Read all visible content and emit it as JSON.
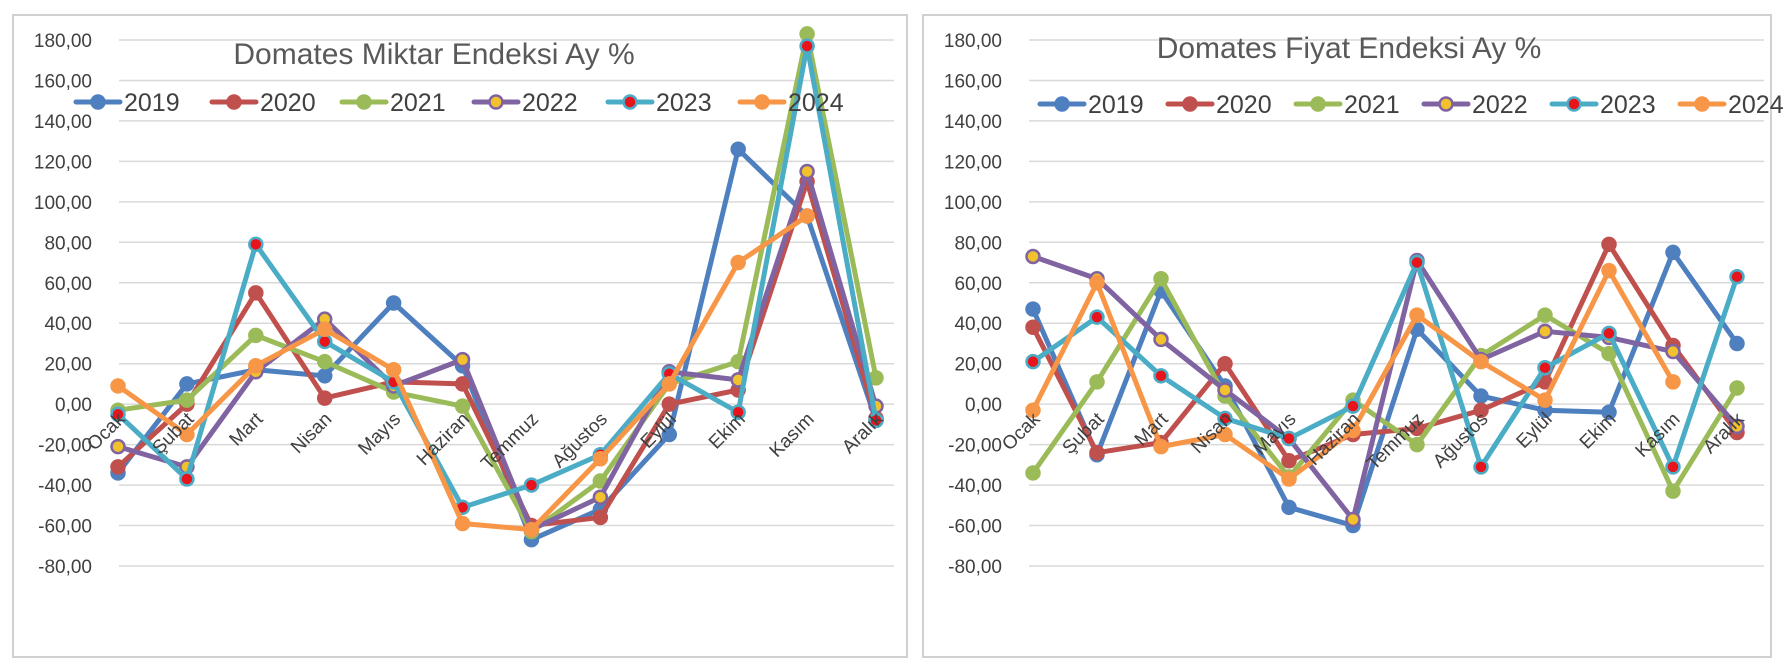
{
  "chart_data": [
    {
      "type": "line",
      "title": "Domates Miktar Endeksi Ay  %",
      "xlabel": "",
      "ylabel": "",
      "ylim": [
        -80,
        180
      ],
      "ytick_labels": [
        "-80,00",
        "-60,00",
        "-40,00",
        "-20,00",
        "0,00",
        "20,00",
        "40,00",
        "60,00",
        "80,00",
        "100,00",
        "120,00",
        "140,00",
        "160,00",
        "180,00"
      ],
      "grid": true,
      "legend_position": "top",
      "categories": [
        "Ocak",
        "Şubat",
        "Mart",
        "Nisan",
        "Mayıs",
        "Haziran",
        "Temmuz",
        "Ağustos",
        "Eylül",
        "Ekim",
        "Kasım",
        "Aralık"
      ],
      "series": [
        {
          "name": "2019",
          "color": "#4e7fbe",
          "values": [
            -34,
            10,
            17,
            14,
            50,
            19,
            -67,
            -52,
            -15,
            126,
            93,
            -8
          ]
        },
        {
          "name": "2020",
          "color": "#c0504d",
          "values": [
            -31,
            0,
            55,
            3,
            11,
            10,
            -60,
            -56,
            0,
            7,
            110,
            -7
          ]
        },
        {
          "name": "2021",
          "color": "#9bbb59",
          "values": [
            -3,
            2,
            34,
            21,
            6,
            -1,
            -63,
            -38,
            10,
            21,
            183,
            13
          ]
        },
        {
          "name": "2022",
          "color": "#8064a2",
          "marker": "#f2c12e",
          "values": [
            -21,
            -31,
            16,
            42,
            9,
            22,
            -62,
            -46,
            16,
            12,
            115,
            -1
          ]
        },
        {
          "name": "2023",
          "color": "#4bacc6",
          "marker": "#e8141c",
          "values": [
            -5,
            -37,
            79,
            31,
            11,
            -51,
            -40,
            -25,
            15,
            -4,
            177,
            -8
          ]
        },
        {
          "name": "2024",
          "color": "#f79646",
          "values": [
            9,
            -15,
            19,
            37,
            17,
            -59,
            -62,
            -27,
            10,
            70,
            93,
            null
          ]
        }
      ]
    },
    {
      "type": "line",
      "title": "Domates Fiyat Endeksi Ay %",
      "xlabel": "",
      "ylabel": "",
      "ylim": [
        -80,
        180
      ],
      "ytick_labels": [
        "-80,00",
        "-60,00",
        "-40,00",
        "-20,00",
        "0,00",
        "20,00",
        "40,00",
        "60,00",
        "80,00",
        "100,00",
        "120,00",
        "140,00",
        "160,00",
        "180,00"
      ],
      "grid": true,
      "legend_position": "top",
      "categories": [
        "Ocak",
        "Şubat",
        "Mart",
        "Nisan",
        "Mayıs",
        "Haziran",
        "Temmuz",
        "Ağustos",
        "Eylül",
        "Ekim",
        "Kasım",
        "Aralık"
      ],
      "series": [
        {
          "name": "2019",
          "color": "#4e7fbe",
          "values": [
            47,
            -25,
            56,
            9,
            -51,
            -60,
            37,
            4,
            -3,
            -4,
            75,
            30
          ]
        },
        {
          "name": "2020",
          "color": "#c0504d",
          "values": [
            38,
            -24,
            -19,
            20,
            -28,
            -15,
            -12,
            -3,
            11,
            79,
            29,
            -14
          ]
        },
        {
          "name": "2021",
          "color": "#9bbb59",
          "values": [
            -34,
            11,
            62,
            4,
            -36,
            2,
            -20,
            24,
            44,
            25,
            -43,
            8
          ]
        },
        {
          "name": "2022",
          "color": "#8064a2",
          "marker": "#f2c12e",
          "values": [
            73,
            62,
            32,
            7,
            -17,
            -57,
            71,
            22,
            36,
            33,
            26,
            -11
          ]
        },
        {
          "name": "2023",
          "color": "#4bacc6",
          "marker": "#e8141c",
          "values": [
            21,
            43,
            14,
            -7,
            -17,
            -1,
            70,
            -31,
            18,
            35,
            -31,
            63
          ]
        },
        {
          "name": "2024",
          "color": "#f79646",
          "values": [
            -3,
            60,
            -21,
            -15,
            -37,
            -13,
            44,
            21,
            2,
            66,
            11,
            null
          ]
        }
      ]
    }
  ]
}
